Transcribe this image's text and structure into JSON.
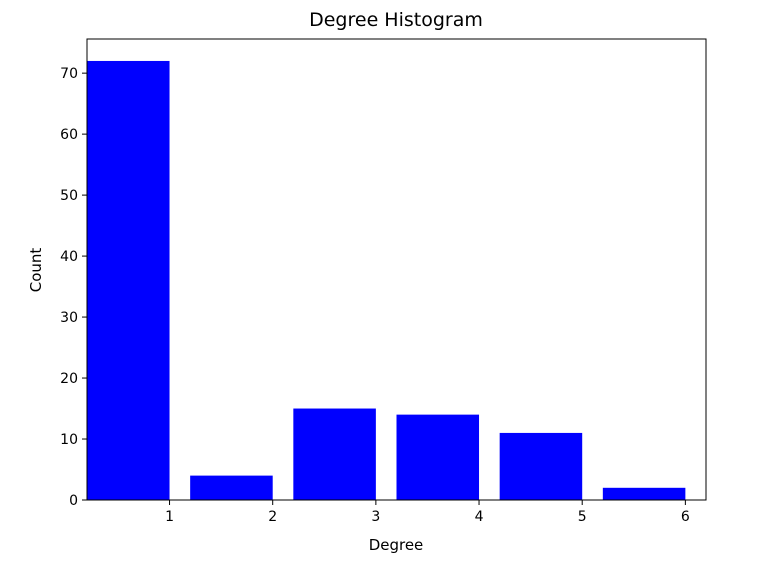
{
  "chart_data": {
    "type": "bar",
    "title": "Degree Histogram",
    "xlabel": "Degree",
    "ylabel": "Count",
    "categories": [
      1,
      2,
      3,
      4,
      5,
      6
    ],
    "values": [
      72,
      4,
      15,
      14,
      11,
      2
    ],
    "xticks": [
      1,
      2,
      3,
      4,
      5,
      6
    ],
    "yticks": [
      0,
      10,
      20,
      30,
      40,
      50,
      60,
      70
    ],
    "ylim": [
      0,
      75.6
    ],
    "bar_color": "#0000ff",
    "grid": false,
    "legend": "none"
  }
}
